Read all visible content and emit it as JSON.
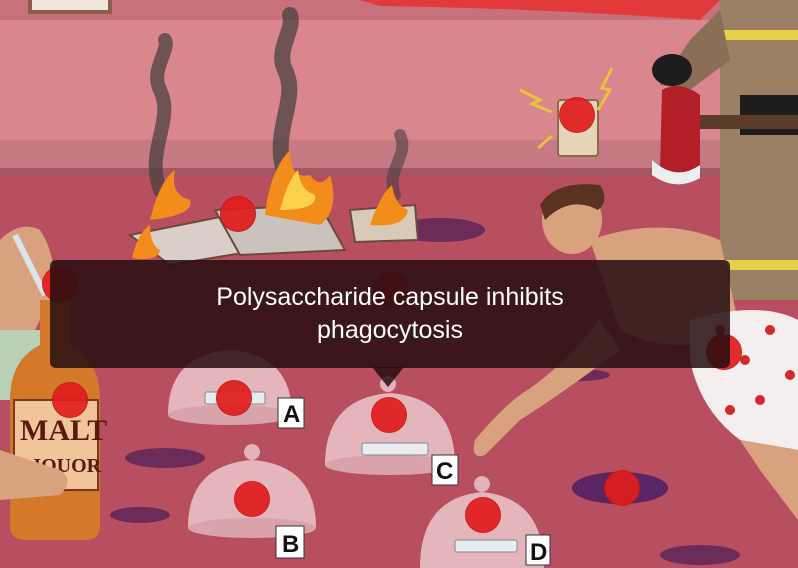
{
  "tooltip": {
    "text": "Polysaccharide capsule inhibits phagocytosis"
  },
  "bottle": {
    "label_line1": "MALT",
    "label_line2": "LIQUOR"
  },
  "petri_dishes": [
    {
      "label": "A"
    },
    {
      "label": "B"
    },
    {
      "label": "C"
    },
    {
      "label": "D"
    }
  ],
  "colors": {
    "hotspot": "#e11d1d",
    "wall": "#d9868f",
    "floor": "#b84f60",
    "tooltip_bg": "#260e10"
  }
}
